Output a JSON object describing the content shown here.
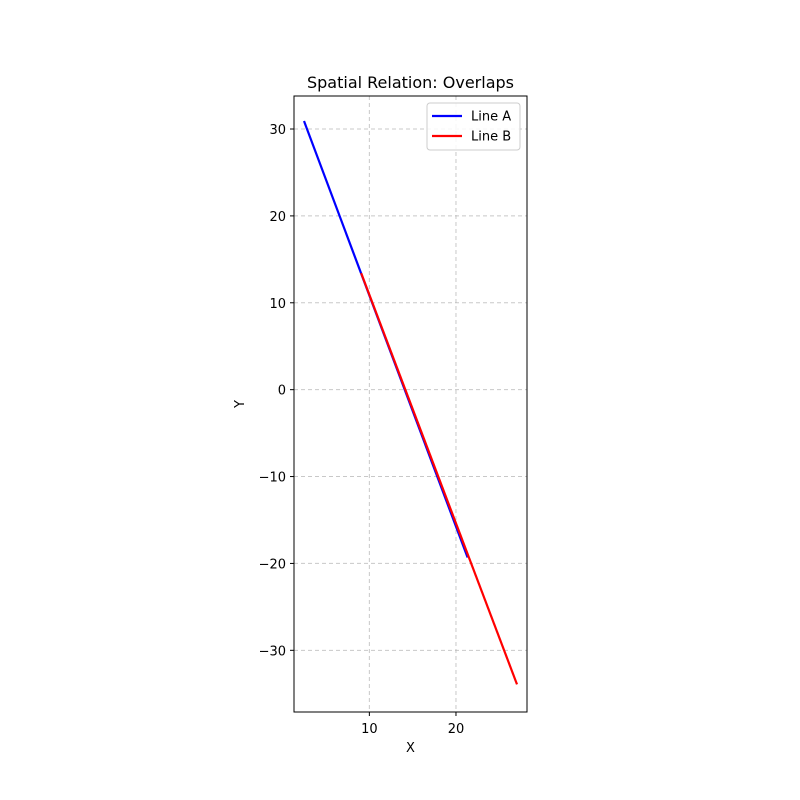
{
  "chart_data": {
    "type": "line",
    "title": "Spatial Relation: Overlaps",
    "xlabel": "X",
    "ylabel": "Y",
    "xlim": [
      1.3,
      28.2
    ],
    "ylim": [
      -37.1,
      33.8
    ],
    "xticks": [
      10,
      20
    ],
    "yticks": [
      -30,
      -20,
      -10,
      0,
      10,
      20,
      30
    ],
    "xtick_labels": [
      "10",
      "20"
    ],
    "ytick_labels": [
      "−30",
      "−20",
      "−10",
      "0",
      "10",
      "20",
      "30"
    ],
    "grid": true,
    "legend_position": "top-right",
    "series": [
      {
        "name": "Line A",
        "color": "#0000ff",
        "x": [
          2.5,
          21.3
        ],
        "y": [
          30.8,
          -19.2
        ]
      },
      {
        "name": "Line B",
        "color": "#ff0000",
        "x": [
          9.1,
          27.0
        ],
        "y": [
          13.3,
          -33.8
        ]
      }
    ]
  }
}
